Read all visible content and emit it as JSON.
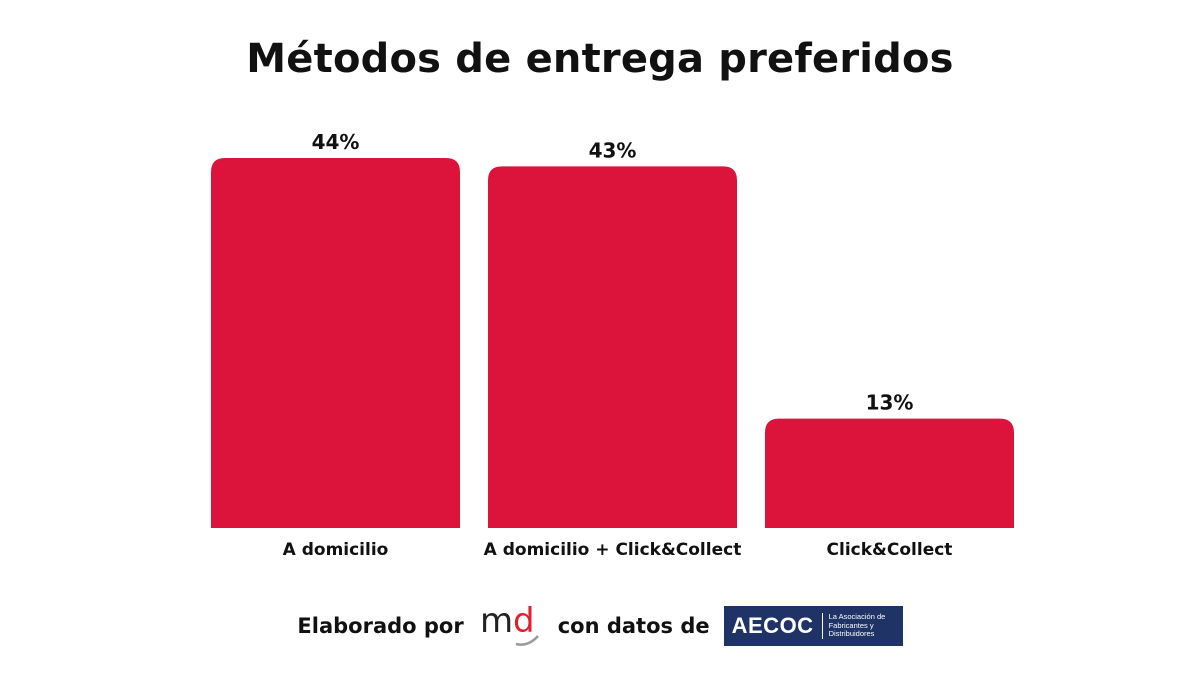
{
  "chart_data": {
    "type": "bar",
    "title": "Métodos de entrega preferidos",
    "categories": [
      "A domicilio",
      "A domicilio + Click&Collect",
      "Click&Collect"
    ],
    "values": [
      44,
      43,
      13
    ],
    "value_labels": [
      "44%",
      "43%",
      "13%"
    ],
    "unit": "%",
    "ylim": [
      0,
      44
    ],
    "grid": false,
    "legend": "none",
    "bar_color": "#dc143c"
  },
  "footer": {
    "prefix": "Elaborado por",
    "middle": "con datos de",
    "md_logo_text": "md",
    "aecoc_logo_text": "AECOC",
    "aecoc_subtitle": "La Asociación de Fabricantes y Distribuidores"
  },
  "colors": {
    "bar": "#dc143c",
    "text": "#111111",
    "aecoc_bg": "#1f3367",
    "md_red": "#e0202f"
  }
}
